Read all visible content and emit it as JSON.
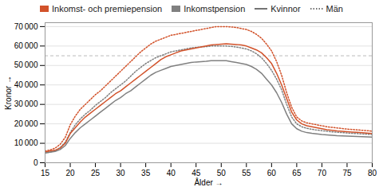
{
  "chart_data": {
    "type": "line",
    "xlabel": "Ålder",
    "ylabel": "Kronor",
    "x": [
      15,
      16,
      17,
      18,
      19,
      20,
      21,
      22,
      23,
      24,
      25,
      26,
      27,
      28,
      29,
      30,
      31,
      32,
      33,
      34,
      35,
      36,
      37,
      38,
      39,
      40,
      41,
      42,
      43,
      44,
      45,
      46,
      47,
      48,
      49,
      50,
      51,
      52,
      53,
      54,
      55,
      56,
      57,
      58,
      59,
      60,
      61,
      62,
      63,
      64,
      65,
      66,
      67,
      68,
      69,
      70,
      71,
      72,
      73,
      74,
      75,
      76,
      77,
      78,
      79,
      80
    ],
    "series": [
      {
        "color": "#D2522A",
        "line_style": "dotted",
        "values": [
          6000,
          6600,
          7500,
          9500,
          13000,
          19500,
          24000,
          27500,
          30000,
          32500,
          35000,
          37000,
          39500,
          42000,
          44500,
          47000,
          49500,
          52000,
          54500,
          57000,
          59000,
          61000,
          62500,
          63500,
          64500,
          65500,
          66000,
          66500,
          67000,
          67500,
          68000,
          68500,
          69000,
          69500,
          70000,
          70000,
          70000,
          69800,
          69500,
          69000,
          68500,
          67500,
          66000,
          64000,
          61000,
          57500,
          52000,
          45000,
          36000,
          28500,
          23500,
          21500,
          20500,
          20000,
          19500,
          19000,
          18500,
          18200,
          17900,
          17600,
          17300,
          17100,
          16900,
          16700,
          16500,
          16200
        ]
      },
      {
        "color": "#808080",
        "line_style": "dotted",
        "values": [
          5000,
          5500,
          6200,
          7800,
          10500,
          15500,
          19500,
          22500,
          25000,
          27000,
          29500,
          31500,
          33500,
          36000,
          38000,
          40000,
          42000,
          44500,
          47000,
          49000,
          51000,
          52500,
          54000,
          55000,
          56000,
          57000,
          57500,
          58000,
          58500,
          59000,
          59300,
          59500,
          59700,
          60000,
          60000,
          60000,
          60000,
          59800,
          59500,
          59000,
          58500,
          57500,
          56000,
          54000,
          51000,
          47500,
          43000,
          37500,
          30000,
          23500,
          20000,
          18500,
          17700,
          17200,
          16800,
          16500,
          16200,
          15900,
          15700,
          15500,
          15300,
          15100,
          15000,
          14800,
          14700,
          14500
        ]
      },
      {
        "color": "#D2522A",
        "line_style": "solid",
        "values": [
          5500,
          6000,
          6400,
          7500,
          10000,
          15000,
          18000,
          21000,
          23500,
          25500,
          27500,
          29500,
          31500,
          33500,
          35500,
          37000,
          39000,
          41000,
          43000,
          45000,
          47000,
          49000,
          51000,
          53000,
          54500,
          55500,
          56500,
          57500,
          58000,
          58500,
          59000,
          59500,
          60000,
          60500,
          60800,
          61000,
          61200,
          61000,
          60800,
          60500,
          60000,
          59000,
          58000,
          56500,
          54000,
          51000,
          46000,
          40000,
          33000,
          26000,
          22000,
          20000,
          19000,
          18500,
          18000,
          17500,
          17000,
          16700,
          16400,
          16200,
          16000,
          15800,
          15600,
          15400,
          15200,
          15000
        ]
      },
      {
        "color": "#808080",
        "line_style": "solid",
        "values": [
          5000,
          5400,
          5800,
          6800,
          8800,
          12500,
          15500,
          18000,
          20000,
          22000,
          24000,
          26000,
          28000,
          30000,
          32000,
          33500,
          35500,
          37000,
          39000,
          41000,
          43000,
          45000,
          46500,
          47500,
          48500,
          49500,
          50000,
          50500,
          51000,
          51500,
          51800,
          52000,
          52200,
          52500,
          52500,
          52500,
          52500,
          52000,
          51500,
          51000,
          50500,
          49500,
          48000,
          46000,
          43000,
          40000,
          36000,
          31000,
          25000,
          20000,
          17500,
          16200,
          15500,
          15100,
          14800,
          14500,
          14300,
          14100,
          13900,
          13800,
          13700,
          13600,
          13500,
          13400,
          13300,
          13200
        ]
      }
    ],
    "legend": "top",
    "legend_entries": [
      {
        "name": "Inkomst- och premiepension",
        "color": "#D2522A"
      },
      {
        "name": "Inkomstpension",
        "color": "#808080"
      },
      {
        "name": "Kvinnor",
        "line_style": "solid"
      },
      {
        "name": "Män",
        "line_style": "dotted"
      }
    ],
    "reference_line": {
      "y": 55000,
      "color": "#bbbbbb",
      "line_style": "dashed"
    },
    "xlim": [
      15,
      80
    ],
    "xticks": [
      15,
      20,
      25,
      30,
      35,
      40,
      45,
      50,
      55,
      60,
      65,
      70,
      75,
      80
    ],
    "ylim": [
      0,
      72000
    ],
    "yticks": [
      0,
      {
        "value": 10000,
        "label": "10 000"
      },
      {
        "value": 20000,
        "label": "20 000"
      },
      {
        "value": 30000,
        "label": "30 000"
      },
      {
        "value": 40000,
        "label": "40 000"
      },
      {
        "value": 50000,
        "label": "50 000"
      },
      {
        "value": 60000,
        "label": "60 000"
      },
      {
        "value": 70000,
        "label": "70 000"
      }
    ],
    "grid": true
  }
}
